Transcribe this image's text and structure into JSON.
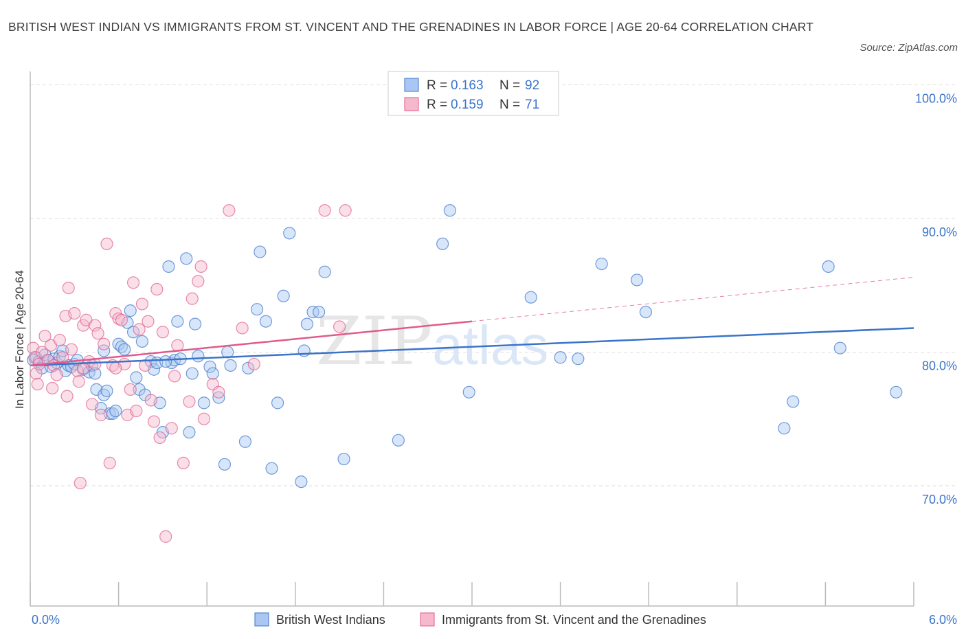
{
  "title": "BRITISH WEST INDIAN VS IMMIGRANTS FROM ST. VINCENT AND THE GRENADINES IN LABOR FORCE | AGE 20-64 CORRELATION CHART",
  "source": "Source: ZipAtlas.com",
  "watermark": "ZIPatlas",
  "colors": {
    "blue": "#3a74c9",
    "blue_fill": "#a9c7f2",
    "pink": "#e05a8a",
    "pink_fill": "#f5b8cc",
    "grid": "#dddddd"
  },
  "legend": {
    "rows": [
      {
        "r_label": "R =",
        "r_value": "0.163",
        "n_label": "N =",
        "n_value": "92"
      },
      {
        "r_label": "R =",
        "r_value": "0.159",
        "n_label": "N =",
        "n_value": "71"
      }
    ]
  },
  "chart_data": {
    "type": "scatter",
    "ylabel": "In Labor Force | Age 20-64",
    "xlim": [
      0,
      6
    ],
    "ylim": [
      61,
      101
    ],
    "y_ticks": [
      {
        "value": 100,
        "label": "100.0%"
      },
      {
        "value": 90,
        "label": "90.0%"
      },
      {
        "value": 80,
        "label": "80.0%"
      },
      {
        "value": 70,
        "label": "70.0%"
      }
    ],
    "x_tick_labels": [
      {
        "value": 0,
        "label": "0.0%"
      },
      {
        "value": 6,
        "label": "6.0%"
      }
    ],
    "grid": true,
    "series": [
      {
        "name": "British West Indians",
        "color": "blue",
        "trend": {
          "x0": 0,
          "y0": 79.0,
          "x1": 6,
          "y1": 81.8,
          "dashed_from": null
        },
        "points": [
          [
            0.02,
            79.4
          ],
          [
            0.04,
            79.6
          ],
          [
            0.06,
            79.3
          ],
          [
            0.08,
            78.8
          ],
          [
            0.1,
            79.8
          ],
          [
            0.12,
            79.4
          ],
          [
            0.14,
            78.9
          ],
          [
            0.16,
            79.5
          ],
          [
            0.18,
            79.2
          ],
          [
            0.2,
            79.7
          ],
          [
            0.22,
            80.1
          ],
          [
            0.24,
            78.6
          ],
          [
            0.26,
            79.0
          ],
          [
            0.28,
            78.9
          ],
          [
            0.3,
            79.1
          ],
          [
            0.32,
            79.4
          ],
          [
            0.36,
            78.7
          ],
          [
            0.4,
            78.5
          ],
          [
            0.42,
            79.0
          ],
          [
            0.44,
            78.4
          ],
          [
            0.45,
            77.2
          ],
          [
            0.48,
            75.8
          ],
          [
            0.5,
            76.8
          ],
          [
            0.52,
            77.1
          ],
          [
            0.54,
            75.4
          ],
          [
            0.56,
            75.4
          ],
          [
            0.58,
            75.6
          ],
          [
            0.6,
            80.6
          ],
          [
            0.62,
            80.4
          ],
          [
            0.64,
            80.2
          ],
          [
            0.66,
            82.2
          ],
          [
            0.68,
            83.1
          ],
          [
            0.7,
            81.5
          ],
          [
            0.72,
            78.1
          ],
          [
            0.74,
            77.2
          ],
          [
            0.76,
            80.8
          ],
          [
            0.78,
            76.8
          ],
          [
            0.82,
            79.3
          ],
          [
            0.84,
            78.7
          ],
          [
            0.86,
            79.2
          ],
          [
            0.88,
            76.2
          ],
          [
            0.9,
            74.0
          ],
          [
            0.94,
            86.4
          ],
          [
            0.96,
            79.2
          ],
          [
            0.98,
            79.4
          ],
          [
            1.0,
            82.3
          ],
          [
            1.02,
            79.5
          ],
          [
            1.06,
            87.0
          ],
          [
            1.08,
            74.0
          ],
          [
            1.1,
            78.4
          ],
          [
            1.12,
            82.1
          ],
          [
            1.14,
            79.7
          ],
          [
            1.18,
            76.2
          ],
          [
            1.22,
            78.9
          ],
          [
            1.24,
            78.4
          ],
          [
            1.28,
            76.6
          ],
          [
            1.32,
            71.6
          ],
          [
            1.34,
            80.0
          ],
          [
            1.36,
            79.0
          ],
          [
            1.46,
            73.3
          ],
          [
            1.48,
            78.8
          ],
          [
            1.54,
            83.2
          ],
          [
            1.56,
            87.5
          ],
          [
            1.6,
            82.3
          ],
          [
            1.64,
            71.3
          ],
          [
            1.68,
            76.2
          ],
          [
            1.72,
            84.2
          ],
          [
            1.76,
            88.9
          ],
          [
            1.84,
            70.3
          ],
          [
            1.86,
            80.1
          ],
          [
            1.88,
            82.1
          ],
          [
            1.92,
            83.0
          ],
          [
            1.96,
            83.0
          ],
          [
            2.0,
            86.0
          ],
          [
            2.13,
            72.0
          ],
          [
            2.5,
            73.4
          ],
          [
            2.8,
            88.1
          ],
          [
            2.85,
            90.6
          ],
          [
            2.98,
            77.0
          ],
          [
            3.4,
            84.1
          ],
          [
            3.6,
            79.6
          ],
          [
            3.72,
            79.5
          ],
          [
            3.88,
            86.6
          ],
          [
            4.12,
            85.4
          ],
          [
            4.18,
            83.0
          ],
          [
            5.12,
            74.3
          ],
          [
            5.18,
            76.3
          ],
          [
            5.42,
            86.4
          ],
          [
            5.5,
            80.3
          ],
          [
            5.88,
            77.0
          ],
          [
            0.5,
            80.1
          ],
          [
            0.92,
            79.3
          ]
        ]
      },
      {
        "name": "Immigrants from St. Vincent and the Grenadines",
        "color": "pink",
        "trend": {
          "x0": 0,
          "y0": 79.0,
          "x1": 6,
          "y1": 85.6,
          "solid_until": 3.0
        },
        "points": [
          [
            0.02,
            80.3
          ],
          [
            0.03,
            79.6
          ],
          [
            0.04,
            78.4
          ],
          [
            0.05,
            77.6
          ],
          [
            0.06,
            79.1
          ],
          [
            0.08,
            80.0
          ],
          [
            0.1,
            81.2
          ],
          [
            0.12,
            79.4
          ],
          [
            0.14,
            80.5
          ],
          [
            0.15,
            77.3
          ],
          [
            0.16,
            79.0
          ],
          [
            0.18,
            78.3
          ],
          [
            0.2,
            80.9
          ],
          [
            0.22,
            79.6
          ],
          [
            0.24,
            82.7
          ],
          [
            0.25,
            76.7
          ],
          [
            0.26,
            84.8
          ],
          [
            0.28,
            80.2
          ],
          [
            0.3,
            82.9
          ],
          [
            0.32,
            78.6
          ],
          [
            0.33,
            77.8
          ],
          [
            0.34,
            70.2
          ],
          [
            0.36,
            82.0
          ],
          [
            0.38,
            82.4
          ],
          [
            0.4,
            79.3
          ],
          [
            0.42,
            76.1
          ],
          [
            0.44,
            82.0
          ],
          [
            0.46,
            81.4
          ],
          [
            0.48,
            75.3
          ],
          [
            0.5,
            80.6
          ],
          [
            0.52,
            88.1
          ],
          [
            0.54,
            71.7
          ],
          [
            0.56,
            79.0
          ],
          [
            0.58,
            82.9
          ],
          [
            0.6,
            82.5
          ],
          [
            0.62,
            82.4
          ],
          [
            0.64,
            79.1
          ],
          [
            0.66,
            75.3
          ],
          [
            0.68,
            77.2
          ],
          [
            0.7,
            85.2
          ],
          [
            0.72,
            75.6
          ],
          [
            0.74,
            81.7
          ],
          [
            0.76,
            83.6
          ],
          [
            0.78,
            79.0
          ],
          [
            0.8,
            82.3
          ],
          [
            0.82,
            76.4
          ],
          [
            0.84,
            74.8
          ],
          [
            0.86,
            84.7
          ],
          [
            0.88,
            73.6
          ],
          [
            0.9,
            81.5
          ],
          [
            0.92,
            66.2
          ],
          [
            0.96,
            74.3
          ],
          [
            0.98,
            78.2
          ],
          [
            1.0,
            80.5
          ],
          [
            1.04,
            71.7
          ],
          [
            1.08,
            76.3
          ],
          [
            1.1,
            84.0
          ],
          [
            1.14,
            85.3
          ],
          [
            1.16,
            86.4
          ],
          [
            1.18,
            75.0
          ],
          [
            1.24,
            77.6
          ],
          [
            1.28,
            77.0
          ],
          [
            1.35,
            90.6
          ],
          [
            1.44,
            81.8
          ],
          [
            1.52,
            79.1
          ],
          [
            2.0,
            90.6
          ],
          [
            2.1,
            81.9
          ],
          [
            2.14,
            90.6
          ],
          [
            0.58,
            78.8
          ],
          [
            0.44,
            79.1
          ],
          [
            0.36,
            78.8
          ]
        ]
      }
    ]
  },
  "bottom_legend": [
    {
      "label": "British West Indians",
      "color": "blue"
    },
    {
      "label": "Immigrants from St. Vincent and the Grenadines",
      "color": "pink"
    }
  ]
}
